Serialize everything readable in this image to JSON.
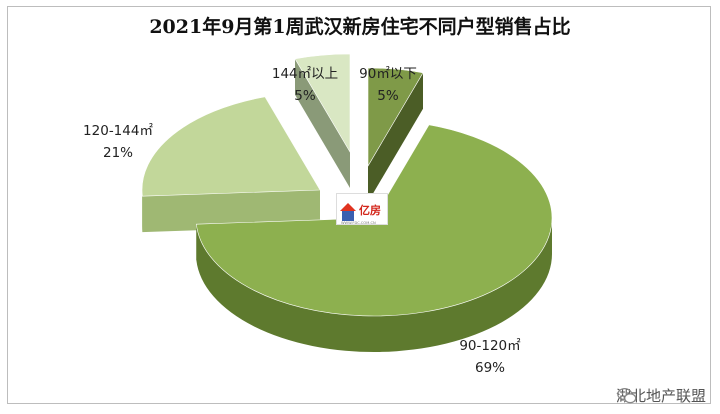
{
  "chart_data": {
    "type": "pie",
    "title": "2021年9月第1周武汉新房住宅不同户型销售占比",
    "slices": [
      {
        "name": "90㎡以下",
        "pct_label": "5%",
        "value": 5,
        "color": "#7f9a48",
        "side": "#4b5d26"
      },
      {
        "name": "90-120㎡",
        "pct_label": "69%",
        "value": 69,
        "color": "#8db04f",
        "side": "#5e7a2e"
      },
      {
        "name": "120-144㎡",
        "pct_label": "21%",
        "value": 21,
        "color": "#c2d79a",
        "side": "#9fb873"
      },
      {
        "name": "144㎡以上",
        "pct_label": "5%",
        "value": 5,
        "color": "#d9e7c3",
        "side": "#8a9a78"
      }
    ],
    "legend": "none"
  },
  "logo": {
    "text": "亿房",
    "sub": "WWW.FDC.COM.CN"
  },
  "watermark": {
    "text": "湖北地产联盟",
    "icon": "wechat-icon"
  }
}
